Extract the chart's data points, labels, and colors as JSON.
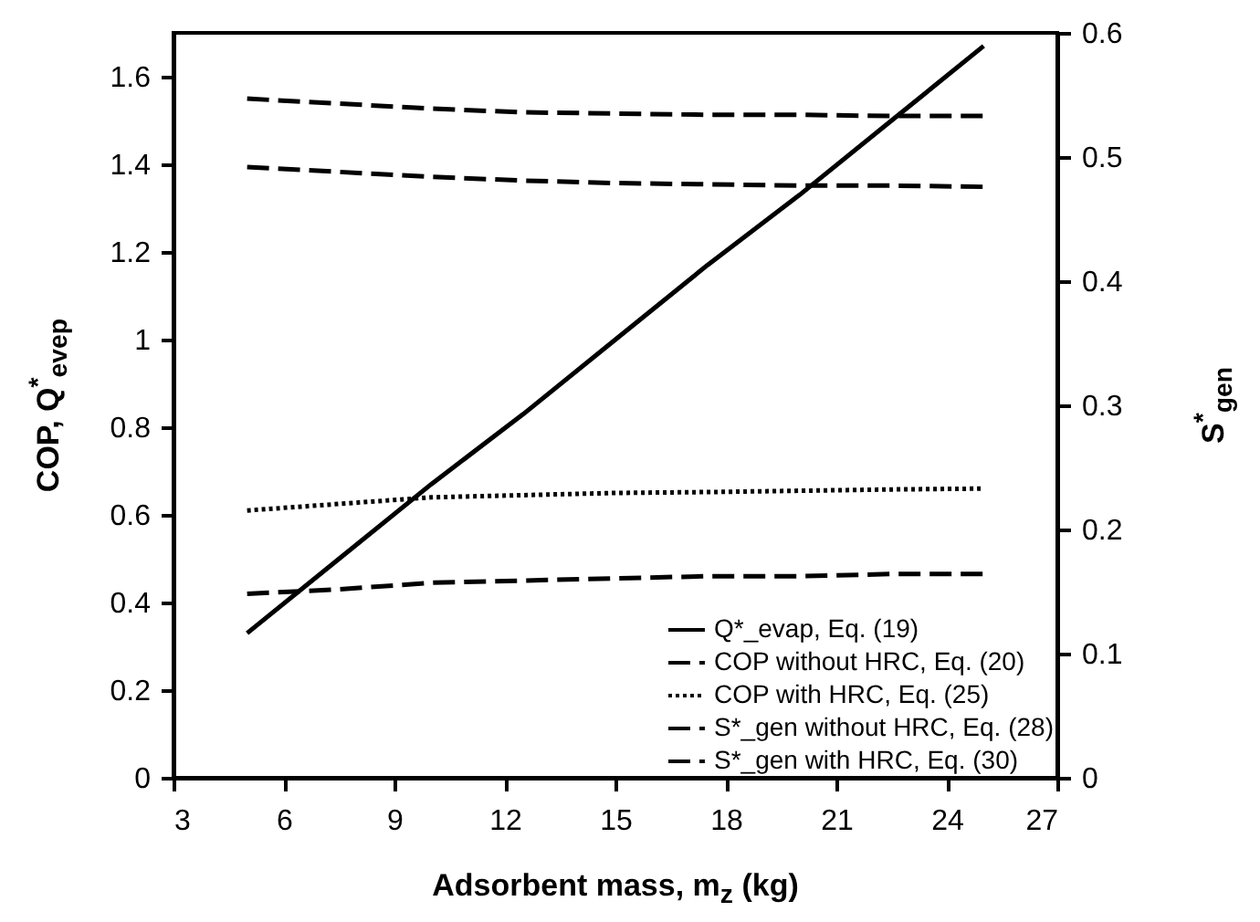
{
  "chart_data": {
    "type": "line",
    "xlabel": "Adsorbent mass, m$_{z}$ (kg)",
    "ylabel": "COP, Q$^{*}$$_{evep}$",
    "y2label": "S$^{*}$$_{gen}$",
    "x": [
      5,
      7.5,
      10,
      12.5,
      15,
      17.5,
      20,
      22.5,
      25
    ],
    "xlim": [
      3,
      27
    ],
    "xticks": [
      3,
      6,
      9,
      12,
      15,
      18,
      21,
      24,
      27
    ],
    "ylim": [
      0,
      1.7
    ],
    "yticks": [
      0,
      0.2,
      0.4,
      0.6,
      0.8,
      1,
      1.2,
      1.4,
      1.6
    ],
    "y2lim": [
      0,
      0.6
    ],
    "y2ticks": [
      0,
      0.1,
      0.2,
      0.3,
      0.4,
      0.5,
      0.6
    ],
    "grid": false,
    "legend": "bottom right",
    "marker": "none",
    "series": [
      {
        "name": "Q*_evap, Eq. (19)",
        "color": "#000000",
        "line_style": "solid",
        "values": [
          0.33,
          0.5,
          0.67,
          0.83,
          1.0,
          1.17,
          1.33,
          1.5,
          1.67
        ]
      },
      {
        "name": "COP without HRC, Eq. (20)",
        "color": "#000000",
        "line_style": "dashed",
        "values": [
          0.42,
          0.43,
          0.445,
          0.45,
          0.455,
          0.46,
          0.46,
          0.465,
          0.465
        ]
      },
      {
        "name": "COP with HRC, Eq. (25)",
        "color": "#000000",
        "line_style": "dotted",
        "values": [
          0.61,
          0.625,
          0.64,
          0.645,
          0.65,
          0.652,
          0.655,
          0.658,
          0.66
        ]
      },
      {
        "name": "S*_gen without HRC, Eq. (28)",
        "color": "#000000",
        "line_style": "dashed",
        "axis": "y2",
        "values": [
          0.547,
          0.543,
          0.539,
          0.536,
          0.535,
          0.534,
          0.534,
          0.533,
          0.533
        ]
      },
      {
        "name": "S*_gen with HRC, Eq. (30)",
        "color": "#000000",
        "line_style": "dashed",
        "axis": "y2",
        "values": [
          0.492,
          0.488,
          0.484,
          0.481,
          0.479,
          0.478,
          0.477,
          0.477,
          0.476
        ]
      }
    ]
  }
}
